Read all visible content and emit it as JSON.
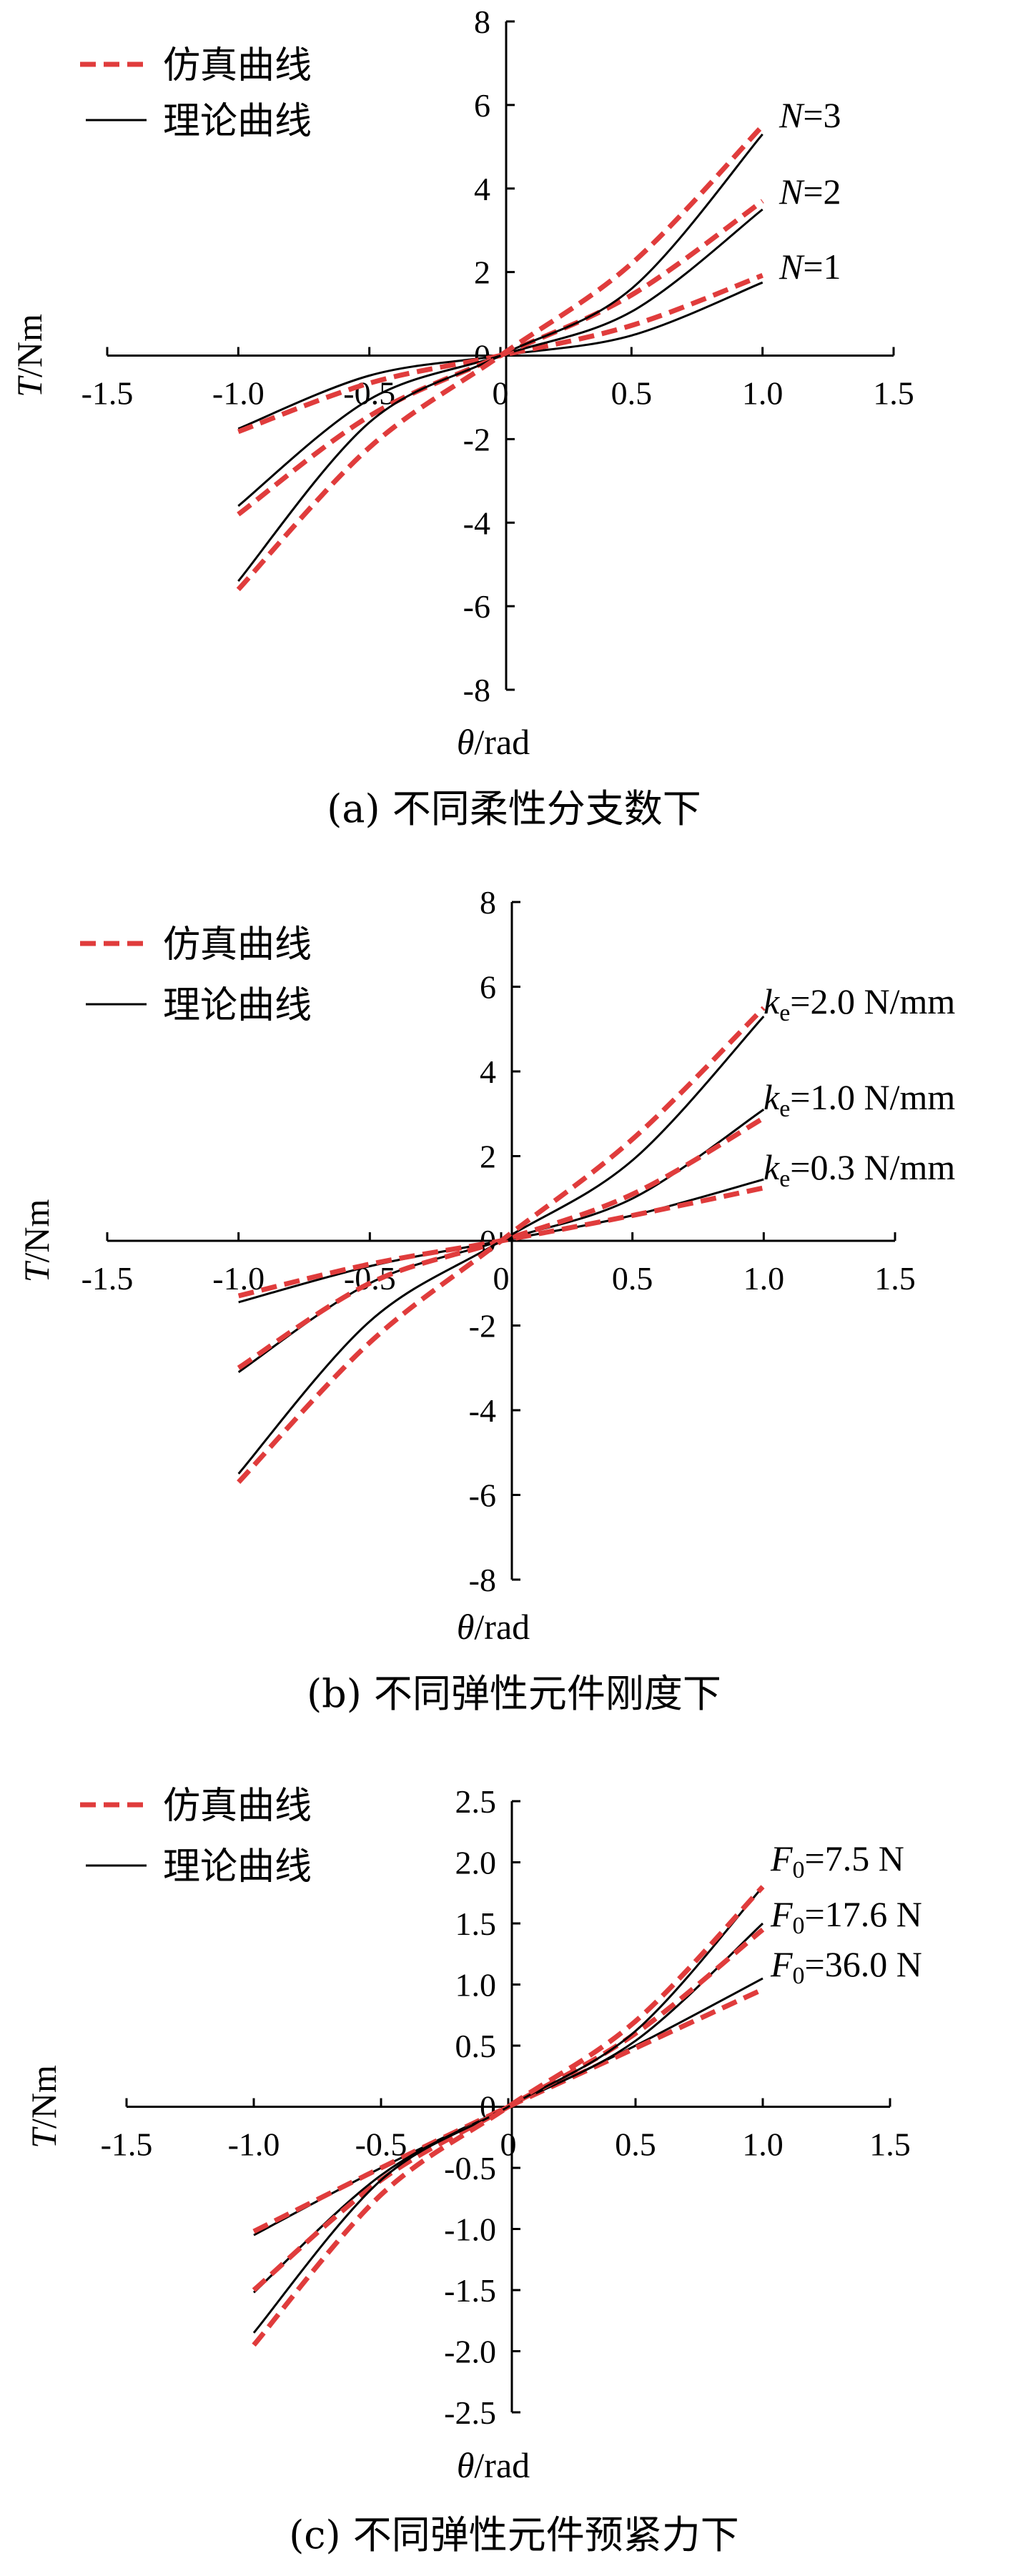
{
  "chart_data": [
    {
      "type": "line",
      "caption": "(a)  不同柔性分支数下",
      "xlabel_sym": "θ",
      "xlabel_unit": "/rad",
      "ylabel_sym": "T",
      "ylabel_unit": "/Nm",
      "xlim": [
        -1.5,
        1.5
      ],
      "ylim": [
        -8,
        8
      ],
      "x_ticks": [
        "-1.5",
        "-1.0",
        "-0.5",
        "0",
        "0.5",
        "1.0",
        "1.5"
      ],
      "y_ticks": [
        "8",
        "6",
        "4",
        "2",
        "0",
        "-2",
        "-4",
        "-6",
        "-8"
      ],
      "legend": {
        "placement": "top-left",
        "sim_label": "仿真曲线",
        "theory_label": "理论曲线"
      },
      "colors": {
        "sim": "#e03c3c",
        "theory": "#000000"
      },
      "curves": [
        {
          "ann_sym": "N",
          "ann_sub": "",
          "ann_val": "=1",
          "sim": [
            [
              -1.0,
              -1.82
            ],
            [
              -0.5,
              -0.66
            ],
            [
              0.0,
              0.0
            ],
            [
              0.5,
              0.72
            ],
            [
              1.0,
              1.92
            ]
          ],
          "theory": [
            [
              -1.0,
              -1.75
            ],
            [
              -0.5,
              -0.48
            ],
            [
              0.0,
              0.0
            ],
            [
              0.5,
              0.48
            ],
            [
              1.0,
              1.75
            ]
          ]
        },
        {
          "ann_sym": "N",
          "ann_sub": "",
          "ann_val": "=2",
          "sim": [
            [
              -1.0,
              -3.8
            ],
            [
              -0.5,
              -1.45
            ],
            [
              0.0,
              0.0
            ],
            [
              0.5,
              1.45
            ],
            [
              1.0,
              3.7
            ]
          ],
          "theory": [
            [
              -1.0,
              -3.6
            ],
            [
              -0.5,
              -1.05
            ],
            [
              0.0,
              0.0
            ],
            [
              0.5,
              1.05
            ],
            [
              1.0,
              3.5
            ]
          ]
        },
        {
          "ann_sym": "N",
          "ann_sub": "",
          "ann_val": "=3",
          "sim": [
            [
              -1.0,
              -5.6
            ],
            [
              -0.5,
              -2.2
            ],
            [
              0.0,
              0.0
            ],
            [
              0.5,
              2.2
            ],
            [
              1.0,
              5.5
            ]
          ],
          "theory": [
            [
              -1.0,
              -5.4
            ],
            [
              -0.5,
              -1.6
            ],
            [
              0.0,
              0.0
            ],
            [
              0.5,
              1.6
            ],
            [
              1.0,
              5.3
            ]
          ]
        }
      ]
    },
    {
      "type": "line",
      "caption": "(b)  不同弹性元件刚度下",
      "xlabel_sym": "θ",
      "xlabel_unit": "/rad",
      "ylabel_sym": "T",
      "ylabel_unit": "/Nm",
      "xlim": [
        -1.5,
        1.5
      ],
      "ylim": [
        -8,
        8
      ],
      "x_ticks": [
        "-1.5",
        "-1.0",
        "-0.5",
        "0",
        "0.5",
        "1.0",
        "1.5"
      ],
      "y_ticks": [
        "8",
        "6",
        "4",
        "2",
        "0",
        "-2",
        "-4",
        "-6",
        "-8"
      ],
      "legend": {
        "placement": "top-left",
        "sim_label": "仿真曲线",
        "theory_label": "理论曲线"
      },
      "colors": {
        "sim": "#e03c3c",
        "theory": "#000000"
      },
      "curves": [
        {
          "ann_sym": "k",
          "ann_sub": "e",
          "ann_val": "=0.3 N/mm",
          "sim": [
            [
              -1.0,
              -1.3
            ],
            [
              -0.5,
              -0.55
            ],
            [
              0.0,
              0.0
            ],
            [
              0.5,
              0.6
            ],
            [
              1.0,
              1.25
            ]
          ],
          "theory": [
            [
              -1.0,
              -1.45
            ],
            [
              -0.5,
              -0.6
            ],
            [
              0.0,
              0.0
            ],
            [
              0.5,
              0.6
            ],
            [
              1.0,
              1.45
            ]
          ]
        },
        {
          "ann_sym": "k",
          "ann_sub": "e",
          "ann_val": "=1.0 N/mm",
          "sim": [
            [
              -1.0,
              -3.0
            ],
            [
              -0.5,
              -1.0
            ],
            [
              0.0,
              0.0
            ],
            [
              0.5,
              1.1
            ],
            [
              1.0,
              2.9
            ]
          ],
          "theory": [
            [
              -1.0,
              -3.1
            ],
            [
              -0.5,
              -1.0
            ],
            [
              0.0,
              0.0
            ],
            [
              0.5,
              1.0
            ],
            [
              1.0,
              3.1
            ]
          ]
        },
        {
          "ann_sym": "k",
          "ann_sub": "e",
          "ann_val": "=2.0 N/mm",
          "sim": [
            [
              -1.0,
              -5.7
            ],
            [
              -0.5,
              -2.4
            ],
            [
              0.0,
              0.0
            ],
            [
              0.5,
              2.4
            ],
            [
              1.0,
              5.5
            ]
          ],
          "theory": [
            [
              -1.0,
              -5.5
            ],
            [
              -0.5,
              -1.9
            ],
            [
              0.0,
              0.0
            ],
            [
              0.5,
              1.9
            ],
            [
              1.0,
              5.3
            ]
          ]
        }
      ]
    },
    {
      "type": "line",
      "caption": "(c)  不同弹性元件预紧力下",
      "xlabel_sym": "θ",
      "xlabel_unit": "/rad",
      "ylabel_sym": "T",
      "ylabel_unit": "/Nm",
      "xlim": [
        -1.5,
        1.5
      ],
      "ylim": [
        -2.5,
        2.5
      ],
      "x_ticks": [
        "-1.5",
        "-1.0",
        "-0.5",
        "0",
        "0.5",
        "1.0",
        "1.5"
      ],
      "y_ticks": [
        "2.5",
        "2.0",
        "1.5",
        "1.0",
        "0.5",
        "0",
        "-0.5",
        "-1.0",
        "-1.5",
        "-2.0",
        "-2.5"
      ],
      "legend": {
        "placement": "top-left",
        "sim_label": "仿真曲线",
        "theory_label": "理论曲线"
      },
      "colors": {
        "sim": "#e03c3c",
        "theory": "#000000"
      },
      "curves": [
        {
          "ann_sym": "F",
          "ann_sub": "0",
          "ann_val": "=36.0 N",
          "sim": [
            [
              -1.0,
              -1.02
            ],
            [
              -0.5,
              -0.5
            ],
            [
              0.0,
              0.0
            ],
            [
              0.5,
              0.48
            ],
            [
              1.0,
              0.96
            ]
          ],
          "theory": [
            [
              -1.0,
              -1.05
            ],
            [
              -0.5,
              -0.5
            ],
            [
              0.0,
              0.0
            ],
            [
              0.5,
              0.5
            ],
            [
              1.0,
              1.05
            ]
          ]
        },
        {
          "ann_sym": "F",
          "ann_sub": "0",
          "ann_val": "=17.6 N",
          "sim": [
            [
              -1.0,
              -1.5
            ],
            [
              -0.5,
              -0.6
            ],
            [
              0.0,
              0.0
            ],
            [
              0.5,
              0.6
            ],
            [
              1.0,
              1.45
            ]
          ],
          "theory": [
            [
              -1.0,
              -1.52
            ],
            [
              -0.5,
              -0.56
            ],
            [
              0.0,
              0.0
            ],
            [
              0.5,
              0.54
            ],
            [
              1.0,
              1.5
            ]
          ]
        },
        {
          "ann_sym": "F",
          "ann_sub": "0",
          "ann_val": "=7.5 N",
          "sim": [
            [
              -1.0,
              -1.95
            ],
            [
              -0.5,
              -0.72
            ],
            [
              0.0,
              0.0
            ],
            [
              0.5,
              0.7
            ],
            [
              1.0,
              1.8
            ]
          ],
          "theory": [
            [
              -1.0,
              -1.85
            ],
            [
              -0.5,
              -0.6
            ],
            [
              0.0,
              0.0
            ],
            [
              0.5,
              0.62
            ],
            [
              1.0,
              1.8
            ]
          ]
        }
      ]
    }
  ]
}
